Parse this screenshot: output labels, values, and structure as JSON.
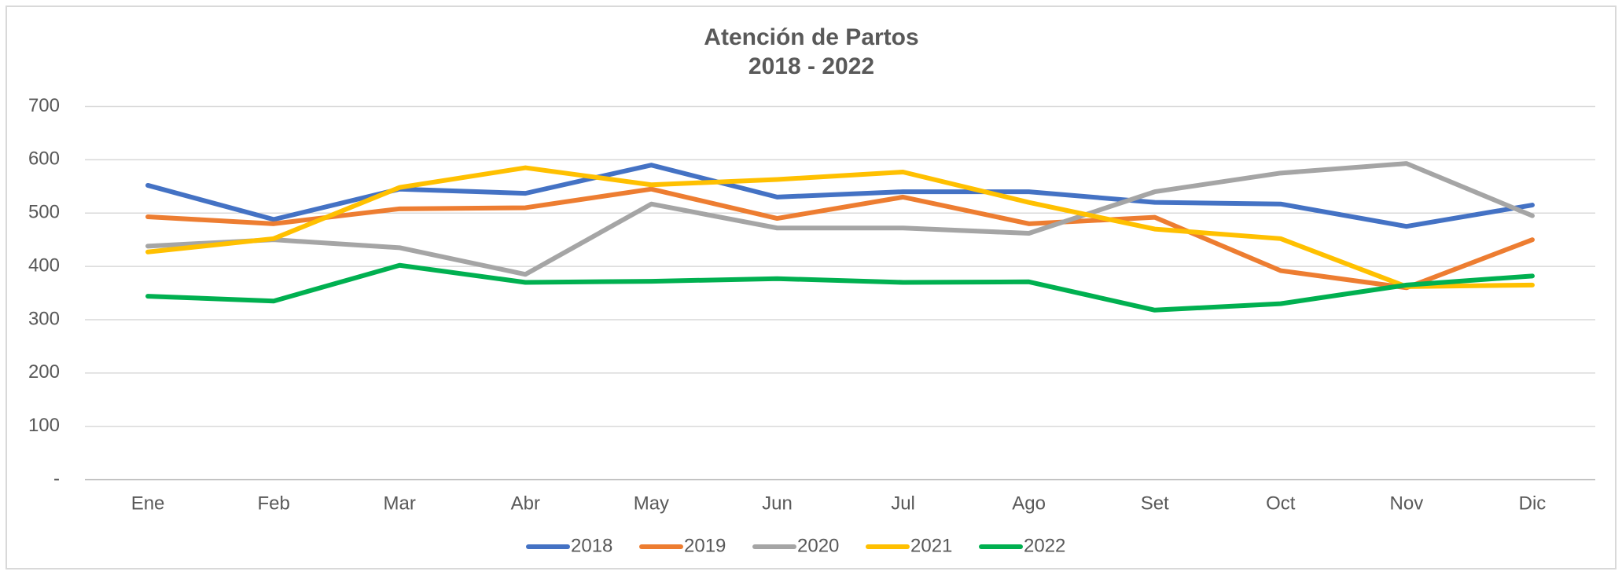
{
  "chart_data": {
    "type": "line",
    "title": "Atención de Partos",
    "subtitle": "2018 - 2022",
    "categories": [
      "Ene",
      "Feb",
      "Mar",
      "Abr",
      "May",
      "Jun",
      "Jul",
      "Ago",
      "Set",
      "Oct",
      "Nov",
      "Dic"
    ],
    "series": [
      {
        "name": "2018",
        "color": "#4472c4",
        "values": [
          552,
          488,
          545,
          537,
          590,
          530,
          540,
          540,
          520,
          517,
          475,
          515
        ]
      },
      {
        "name": "2019",
        "color": "#ed7d31",
        "values": [
          493,
          480,
          508,
          510,
          545,
          490,
          530,
          480,
          492,
          392,
          360,
          450
        ]
      },
      {
        "name": "2020",
        "color": "#a5a5a5",
        "values": [
          438,
          450,
          435,
          385,
          517,
          472,
          472,
          462,
          540,
          575,
          593,
          495
        ]
      },
      {
        "name": "2021",
        "color": "#ffc000",
        "values": [
          427,
          452,
          548,
          585,
          553,
          563,
          577,
          520,
          470,
          452,
          362,
          365
        ]
      },
      {
        "name": "2022",
        "color": "#00b050",
        "values": [
          344,
          335,
          402,
          370,
          372,
          377,
          370,
          371,
          318,
          330,
          365,
          382
        ]
      }
    ],
    "ylim": [
      0,
      700
    ],
    "yticks": [
      {
        "value": 0,
        "label": "-"
      },
      100,
      200,
      300,
      400,
      500,
      600,
      700
    ],
    "grid": true,
    "legend": "bottom"
  }
}
